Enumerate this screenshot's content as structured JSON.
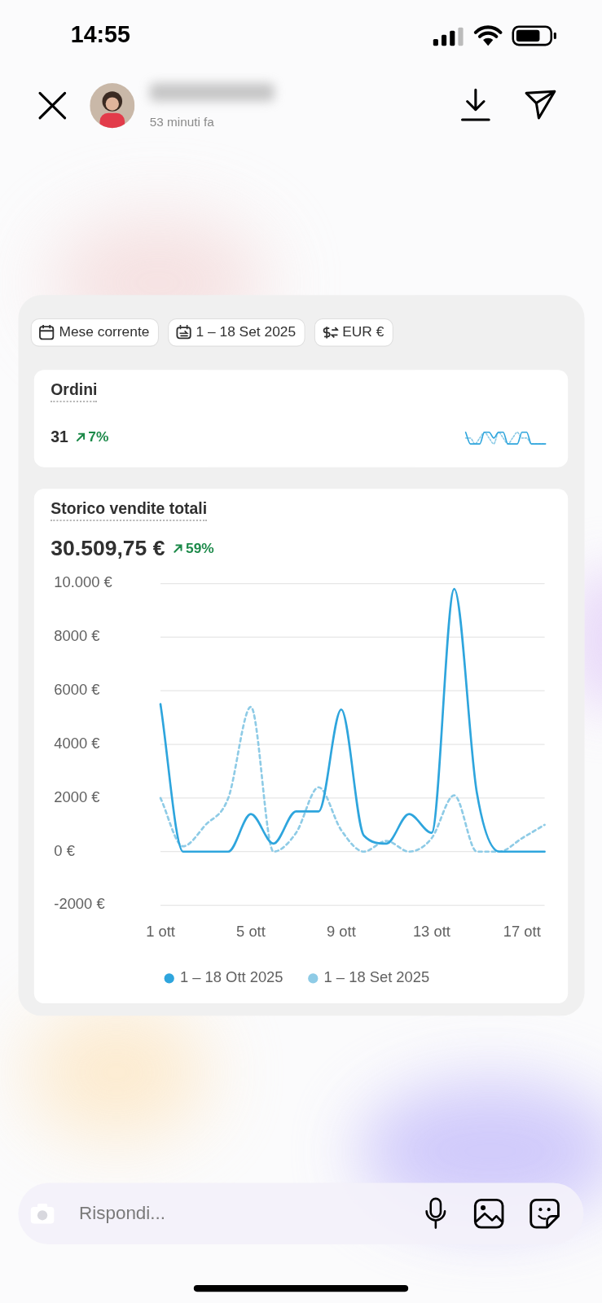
{
  "status_bar": {
    "time": "14:55"
  },
  "story_header": {
    "time_ago": "53 minuti fa"
  },
  "filters": [
    "Mese corrente",
    "1 – 18 Set 2025",
    "EUR €"
  ],
  "cards": {
    "orders": {
      "title": "Ordini",
      "value": "31",
      "change": "7%"
    },
    "sales": {
      "title": "Storico vendite totali",
      "value": "30.509,75 €",
      "change": "59%"
    }
  },
  "reply_bar": {
    "placeholder": "Rispondi..."
  },
  "chart_data": [
    {
      "type": "line",
      "tick_labels": false,
      "categories": [
        null,
        null,
        null,
        null,
        null,
        null,
        null,
        null,
        null,
        null,
        null,
        null,
        null,
        null,
        null,
        null,
        null,
        null
      ],
      "series": [
        {
          "color": "#2ea5dd",
          "line_style": "solid",
          "values": [
            3,
            1,
            1,
            1,
            3,
            3,
            2,
            3,
            3,
            1,
            1,
            1,
            3,
            3,
            1,
            1,
            1,
            1
          ]
        },
        {
          "color": "#8ecbe6",
          "line_style": "dashed",
          "values": [
            2,
            2,
            1,
            2,
            3,
            2,
            1,
            3,
            2,
            1,
            2,
            3,
            2,
            2,
            1,
            1,
            1,
            1
          ]
        }
      ],
      "ylim": [
        0,
        4
      ]
    },
    {
      "type": "line",
      "grid": true,
      "legend": "bottom",
      "categories": [
        "1 ott",
        null,
        null,
        null,
        "5 ott",
        null,
        null,
        null,
        "9 ott",
        null,
        null,
        null,
        "13 ott",
        null,
        null,
        null,
        "17 ott",
        null
      ],
      "series": [
        {
          "name": "1 – 18 Ott 2025",
          "color": "#2ea5dd",
          "line_style": "solid",
          "values": [
            5500,
            0,
            0,
            0,
            1400,
            300,
            1500,
            1500,
            5300,
            600,
            300,
            1400,
            700,
            9800,
            2200,
            0,
            0,
            0
          ]
        },
        {
          "name": "1 – 18 Set 2025",
          "color": "#8ecbe6",
          "line_style": "dashed",
          "values": [
            2000,
            200,
            1000,
            2000,
            5400,
            0,
            700,
            2400,
            800,
            0,
            400,
            0,
            500,
            2100,
            0,
            0,
            500,
            1000
          ]
        }
      ],
      "ylim": [
        -2000,
        10000
      ],
      "yticks": [
        {
          "value": 10000,
          "label": "10.000 €"
        },
        {
          "value": 8000,
          "label": "8000 €"
        },
        {
          "value": 6000,
          "label": "6000 €"
        },
        {
          "value": 4000,
          "label": "4000 €"
        },
        {
          "value": 2000,
          "label": "2000 €"
        },
        {
          "value": 0,
          "label": "0 €"
        },
        {
          "value": -2000,
          "label": "-2000 €"
        }
      ]
    }
  ]
}
